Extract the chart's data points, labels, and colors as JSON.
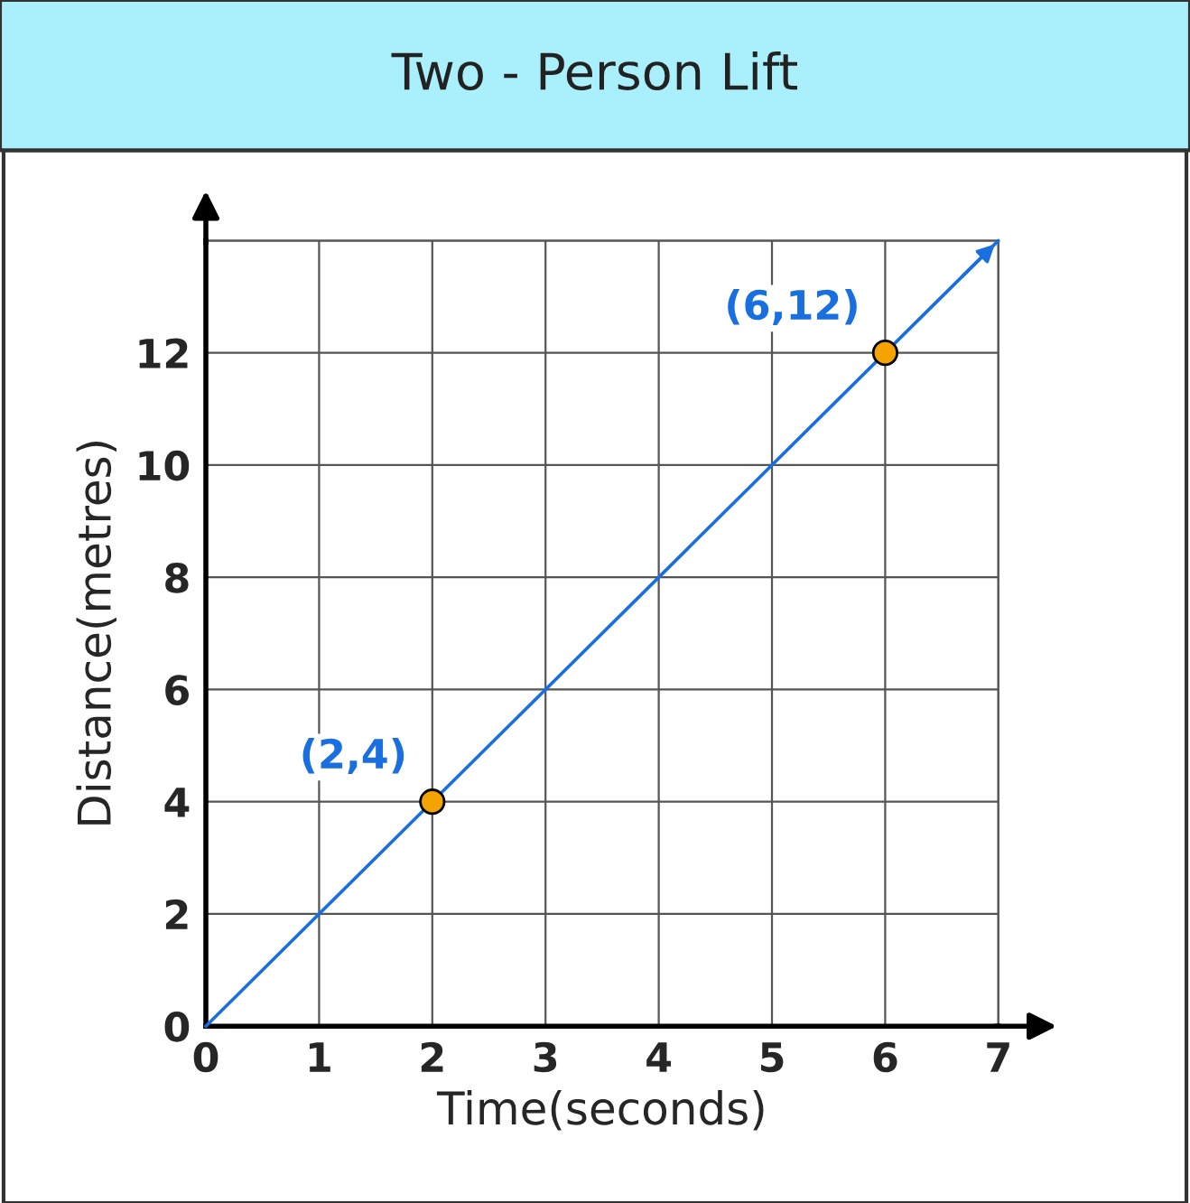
{
  "chart_data": {
    "type": "line",
    "title": "Two - Person Lift",
    "xlabel": "Time(seconds)",
    "ylabel": "Distance(metres)",
    "xlim": [
      0,
      7
    ],
    "xticks": [
      0,
      1,
      2,
      3,
      4,
      5,
      6,
      7
    ],
    "ylim": [
      0,
      14
    ],
    "yticks": [
      0,
      2,
      4,
      6,
      8,
      10,
      12,
      {
        "value": 14,
        "label": null
      }
    ],
    "grid": true,
    "series": [
      {
        "color": "#1a6fe0",
        "x": [
          0,
          7
        ],
        "values": [
          0,
          14
        ],
        "marker": "none"
      },
      {
        "type": "scatter",
        "color": "#f5a300",
        "x": [
          2,
          6
        ],
        "values": [
          4,
          12
        ],
        "marker": "circle"
      }
    ],
    "annotations": [
      {
        "text": "(2,4)",
        "x": 2,
        "y": 4
      },
      {
        "text": "(6,12)",
        "x": 6,
        "y": 12
      }
    ]
  }
}
